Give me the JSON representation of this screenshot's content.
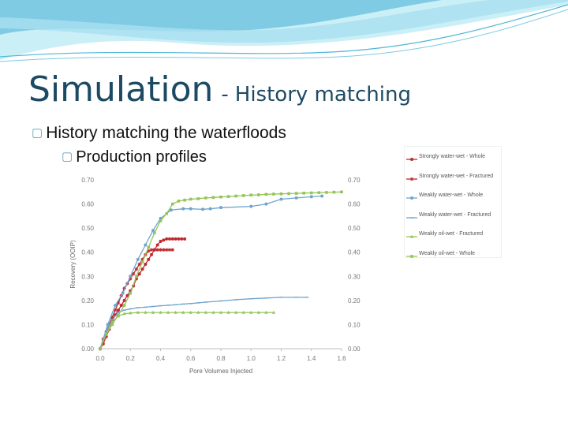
{
  "slide": {
    "title_main": "Simulation",
    "title_separator": "-",
    "title_sub": "History matching",
    "bullets": [
      {
        "mark": "▢",
        "text": "History matching the waterfloods"
      },
      {
        "mark": "▢",
        "text": "Production profiles"
      }
    ]
  },
  "colors": {
    "title": "#1d4a63",
    "wave_light": "#c9eef6",
    "wave_dark": "#4fb6d6",
    "bullet_mark": "#5aa9b5"
  },
  "chart_data": {
    "type": "line",
    "title": "",
    "xlabel": "Pore Volumes Injected",
    "ylabel": "Recovery (OOIP)",
    "xlim": [
      0,
      1.6
    ],
    "ylim": [
      0,
      0.7
    ],
    "x_ticks": [
      "0.0",
      "0.2",
      "0.4",
      "0.6",
      "0.8",
      "1.0",
      "1.2",
      "1.4",
      "1.6"
    ],
    "y_ticks": [
      "0.00",
      "0.10",
      "0.20",
      "0.30",
      "0.40",
      "0.50",
      "0.60",
      "0.70"
    ],
    "right_axis_ticks": [
      "0.00",
      "0.10",
      "0.20",
      "0.30",
      "0.40",
      "0.50",
      "0.60",
      "0.70"
    ],
    "grid": false,
    "legend_position": "right, outside",
    "series": [
      {
        "name": "Strongly water-wet - Whole",
        "color": "#c0282d",
        "marker": "dot",
        "x": [
          0,
          0.02,
          0.04,
          0.06,
          0.08,
          0.1,
          0.12,
          0.14,
          0.16,
          0.18,
          0.2,
          0.22,
          0.24,
          0.26,
          0.28,
          0.3,
          0.32,
          0.34,
          0.36,
          0.38,
          0.4,
          0.42,
          0.44,
          0.46,
          0.48,
          0.5,
          0.52,
          0.54,
          0.56
        ],
        "y": [
          0,
          0.02,
          0.05,
          0.08,
          0.11,
          0.14,
          0.16,
          0.18,
          0.2,
          0.22,
          0.24,
          0.26,
          0.29,
          0.31,
          0.33,
          0.35,
          0.37,
          0.39,
          0.41,
          0.43,
          0.445,
          0.45,
          0.455,
          0.455,
          0.455,
          0.455,
          0.455,
          0.455,
          0.455
        ]
      },
      {
        "name": "Strongly water-wet - Fractured",
        "color": "#c0282d",
        "marker": "star",
        "x": [
          0,
          0.02,
          0.04,
          0.06,
          0.08,
          0.1,
          0.12,
          0.14,
          0.16,
          0.18,
          0.2,
          0.22,
          0.24,
          0.26,
          0.28,
          0.3,
          0.32,
          0.34,
          0.36,
          0.38,
          0.4,
          0.42,
          0.44,
          0.46,
          0.48
        ],
        "y": [
          0,
          0.04,
          0.07,
          0.1,
          0.13,
          0.16,
          0.19,
          0.22,
          0.25,
          0.27,
          0.29,
          0.31,
          0.33,
          0.35,
          0.37,
          0.39,
          0.405,
          0.41,
          0.41,
          0.41,
          0.41,
          0.41,
          0.41,
          0.41,
          0.41
        ]
      },
      {
        "name": "Weakly water-wet - Whole",
        "color": "#6ea4cf",
        "marker": "dot",
        "x": [
          0,
          0.05,
          0.1,
          0.15,
          0.2,
          0.25,
          0.3,
          0.35,
          0.4,
          0.47,
          0.55,
          0.6,
          0.68,
          0.73,
          0.8,
          1.0,
          1.1,
          1.2,
          1.3,
          1.4,
          1.47
        ],
        "y": [
          0,
          0.1,
          0.18,
          0.23,
          0.3,
          0.37,
          0.43,
          0.49,
          0.54,
          0.575,
          0.58,
          0.58,
          0.578,
          0.58,
          0.585,
          0.59,
          0.6,
          0.62,
          0.625,
          0.63,
          0.633
        ]
      },
      {
        "name": "Weakly water-wet - Fractured",
        "color": "#6ea4cf",
        "marker": "dash",
        "x": [
          0,
          0.04,
          0.08,
          0.12,
          0.16,
          0.2,
          0.25,
          0.3,
          0.35,
          0.4,
          0.45,
          0.5,
          0.55,
          0.6,
          0.65,
          0.7,
          0.8,
          0.9,
          1.0,
          1.1,
          1.2,
          1.3,
          1.37
        ],
        "y": [
          0,
          0.07,
          0.12,
          0.15,
          0.16,
          0.165,
          0.17,
          0.172,
          0.175,
          0.178,
          0.18,
          0.182,
          0.185,
          0.187,
          0.19,
          0.193,
          0.198,
          0.203,
          0.207,
          0.21,
          0.213,
          0.213,
          0.213
        ]
      },
      {
        "name": "Weakly oil-wet - Fractured",
        "color": "#94c556",
        "marker": "triangle",
        "x": [
          0,
          0.04,
          0.08,
          0.12,
          0.16,
          0.2,
          0.25,
          0.3,
          0.35,
          0.4,
          0.45,
          0.5,
          0.55,
          0.6,
          0.65,
          0.7,
          0.75,
          0.8,
          0.85,
          0.9,
          0.95,
          1.0,
          1.05,
          1.1,
          1.15
        ],
        "y": [
          0,
          0.06,
          0.11,
          0.135,
          0.145,
          0.148,
          0.15,
          0.15,
          0.15,
          0.15,
          0.15,
          0.15,
          0.15,
          0.15,
          0.15,
          0.15,
          0.15,
          0.15,
          0.15,
          0.15,
          0.15,
          0.15,
          0.15,
          0.15,
          0.15
        ]
      },
      {
        "name": "Weakly oil-wet - Whole",
        "color": "#94c556",
        "marker": "square",
        "x": [
          0,
          0.04,
          0.08,
          0.12,
          0.16,
          0.2,
          0.24,
          0.28,
          0.32,
          0.36,
          0.4,
          0.44,
          0.48,
          0.52,
          0.56,
          0.6,
          0.65,
          0.7,
          0.75,
          0.8,
          0.85,
          0.9,
          0.95,
          1.0,
          1.05,
          1.1,
          1.15,
          1.2,
          1.25,
          1.3,
          1.35,
          1.4,
          1.45,
          1.5,
          1.55,
          1.6
        ],
        "y": [
          0,
          0.06,
          0.1,
          0.14,
          0.18,
          0.23,
          0.3,
          0.36,
          0.42,
          0.48,
          0.53,
          0.56,
          0.6,
          0.612,
          0.616,
          0.62,
          0.622,
          0.625,
          0.627,
          0.629,
          0.631,
          0.633,
          0.635,
          0.637,
          0.638,
          0.64,
          0.641,
          0.642,
          0.643,
          0.644,
          0.645,
          0.646,
          0.647,
          0.648,
          0.649,
          0.65
        ]
      }
    ]
  }
}
